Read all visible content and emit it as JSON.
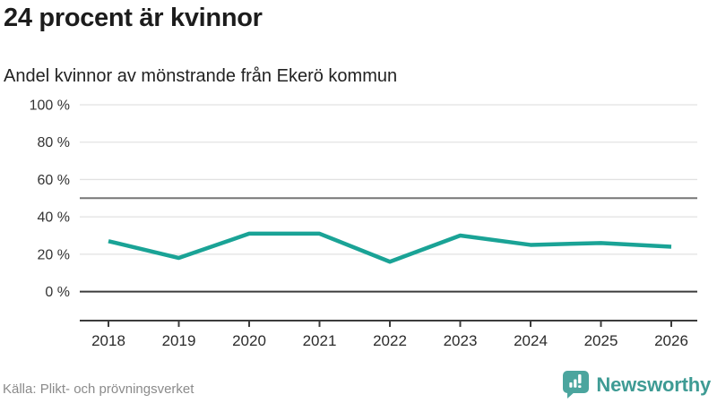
{
  "header": {
    "title": "24 procent är kvinnor",
    "subtitle": "Andel kvinnor av mönstrande från Ekerö kommun"
  },
  "chart_data": {
    "type": "line",
    "title": "24 procent är kvinnor",
    "subtitle": "Andel kvinnor av mönstrande från Ekerö kommun",
    "categories": [
      "2018",
      "2019",
      "2020",
      "2021",
      "2022",
      "2023",
      "2024",
      "2025",
      "2026"
    ],
    "series": [
      {
        "name": "Andel kvinnor av mönstrande",
        "values": [
          27,
          18,
          31,
          31,
          16,
          30,
          25,
          26,
          24
        ],
        "color": "#1aa396"
      }
    ],
    "xlabel": "",
    "ylabel": "",
    "ylim": [
      0,
      100
    ],
    "yticks": [
      0,
      20,
      40,
      60,
      80,
      100
    ],
    "ytick_suffix": " %",
    "reference_line": {
      "y": 50,
      "color": "#767676"
    },
    "grid": true,
    "legend": false,
    "grid_color": "#e2e2e2",
    "axis_color": "#3c3c3c",
    "ytick_label_color": "#333333",
    "xtick_label_color": "#2b2b2b"
  },
  "footer": {
    "source": "Källa: Plikt- och prövningsverket",
    "brand": {
      "name": "Newsworthy",
      "icon": "newsworthy-speech-bubble-bars-icon",
      "icon_color": "#4ba59e",
      "text_color": "#3e9b94"
    }
  }
}
